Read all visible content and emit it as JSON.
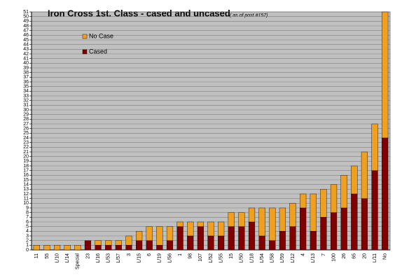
{
  "chart_data": {
    "type": "stacked_bar",
    "title": "Iron Cross 1st. Class - cased and uncased",
    "subtitle": "( as of post #157)",
    "categories": [
      "11",
      "55",
      "L/10",
      "L/14",
      "Special",
      "23",
      "L/16",
      "L/53",
      "L/57",
      "3",
      "L/15",
      "6",
      "L/19",
      "L/56",
      "1",
      "98",
      "107",
      "L/52",
      "L/55",
      "15",
      "L/50",
      "L/18",
      "L/54",
      "L/58",
      "L/59",
      "L/12",
      "4",
      "L/13",
      "7",
      "100",
      "26",
      "65",
      "20",
      "L/11",
      "No"
    ],
    "series": [
      {
        "name": "Cased",
        "color": "#800000",
        "values": [
          0,
          0,
          0,
          0,
          0,
          2,
          1,
          1,
          1,
          1,
          2,
          2,
          1,
          2,
          5,
          3,
          5,
          3,
          3,
          5,
          5,
          6,
          3,
          2,
          4,
          5,
          9,
          4,
          7,
          8,
          9,
          12,
          11,
          17,
          24
        ]
      },
      {
        "name": "No Case",
        "color": "#f0a020",
        "values": [
          1,
          1,
          1,
          1,
          1,
          0,
          1,
          1,
          1,
          2,
          2,
          3,
          4,
          3,
          1,
          3,
          1,
          3,
          3,
          3,
          3,
          3,
          6,
          7,
          5,
          5,
          3,
          8,
          6,
          6,
          7,
          6,
          10,
          10,
          27
        ]
      }
    ],
    "ylim": [
      0,
      51
    ],
    "yticks": [
      0,
      1,
      2,
      3,
      4,
      5,
      6,
      7,
      8,
      9,
      10,
      11,
      12,
      13,
      14,
      15,
      16,
      17,
      18,
      19,
      20,
      21,
      22,
      23,
      24,
      25,
      26,
      27,
      28,
      29,
      30,
      31,
      32,
      33,
      34,
      35,
      36,
      37,
      38,
      39,
      40,
      41,
      42,
      43,
      44,
      45,
      46,
      47,
      48,
      49,
      50,
      51
    ],
    "grid": true,
    "legend": "upper left"
  }
}
